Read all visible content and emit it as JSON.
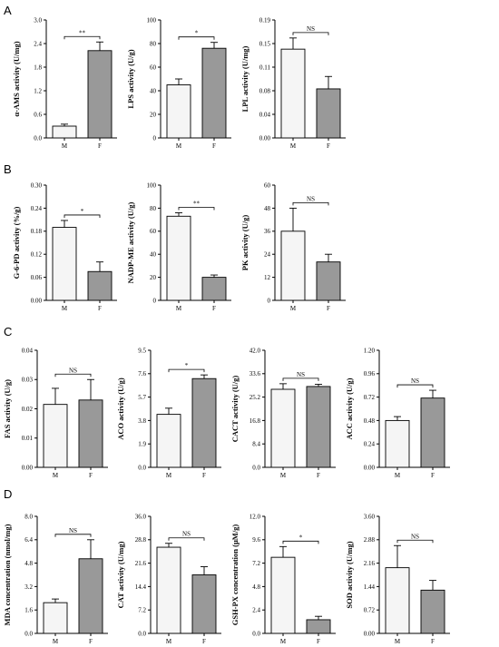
{
  "panel_letters": [
    "A",
    "B",
    "C",
    "D"
  ],
  "colors": {
    "M_bar": "#f5f5f5",
    "F_bar": "#999999",
    "axis": "#000000"
  },
  "chart_data": [
    {
      "type": "bar",
      "panel": "A",
      "ylabel": "α-AMS activity (U/mg)",
      "yticks": [
        "0.0",
        "0.6",
        "1.2",
        "1.8",
        "2.4",
        "3.0"
      ],
      "ylim": [
        0,
        3.0
      ],
      "categories": [
        "M",
        "F"
      ],
      "values": [
        0.3,
        2.22
      ],
      "errors": [
        0.05,
        0.22
      ],
      "significance": "**"
    },
    {
      "type": "bar",
      "panel": "A",
      "ylabel": "LPS activity (U/g)",
      "yticks": [
        "0",
        "20",
        "40",
        "60",
        "80",
        "100"
      ],
      "ylim": [
        0,
        100
      ],
      "categories": [
        "M",
        "F"
      ],
      "values": [
        45,
        76
      ],
      "errors": [
        5,
        5
      ],
      "significance": "*"
    },
    {
      "type": "bar",
      "panel": "A",
      "ylabel": "LPL activity (U/mg)",
      "yticks": [
        "0.00",
        "0.04",
        "0.08",
        "0.11",
        "0.15",
        "0.19"
      ],
      "ylim": [
        0,
        0.19
      ],
      "categories": [
        "M",
        "F"
      ],
      "values": [
        0.143,
        0.079
      ],
      "errors": [
        0.018,
        0.02
      ],
      "significance": "NS"
    },
    {
      "type": "bar",
      "panel": "B",
      "ylabel": "G-6-PD activity (%/g)",
      "yticks": [
        "0.00",
        "0.06",
        "0.12",
        "0.18",
        "0.24",
        "0.30"
      ],
      "ylim": [
        0,
        0.3
      ],
      "categories": [
        "M",
        "F"
      ],
      "values": [
        0.19,
        0.075
      ],
      "errors": [
        0.018,
        0.025
      ],
      "significance": "*"
    },
    {
      "type": "bar",
      "panel": "B",
      "ylabel": "NADP-ME activity (U/g)",
      "yticks": [
        "0",
        "20",
        "40",
        "60",
        "80",
        "100"
      ],
      "ylim": [
        0,
        100
      ],
      "categories": [
        "M",
        "F"
      ],
      "values": [
        73,
        20
      ],
      "errors": [
        3,
        2
      ],
      "significance": "**"
    },
    {
      "type": "bar",
      "panel": "B",
      "ylabel": "PK activity (U/g)",
      "yticks": [
        "0",
        "12",
        "24",
        "36",
        "48",
        "60"
      ],
      "ylim": [
        0,
        60
      ],
      "categories": [
        "M",
        "F"
      ],
      "values": [
        36,
        20
      ],
      "errors": [
        12,
        4
      ],
      "significance": "NS"
    },
    {
      "type": "bar",
      "panel": "C",
      "ylabel": "FAS activity (U/g)",
      "yticks": [
        "0.00",
        "0.01",
        "0.02",
        "0.03",
        "0.04"
      ],
      "ylim": [
        0,
        0.04
      ],
      "categories": [
        "M",
        "F"
      ],
      "values": [
        0.0215,
        0.023
      ],
      "errors": [
        0.0055,
        0.007
      ],
      "significance": "NS"
    },
    {
      "type": "bar",
      "panel": "C",
      "ylabel": "ACO activity (U/g)",
      "yticks": [
        "0.0",
        "1.9",
        "3.8",
        "5.7",
        "7.6",
        "9.5"
      ],
      "ylim": [
        0,
        9.5
      ],
      "categories": [
        "M",
        "F"
      ],
      "values": [
        4.3,
        7.2
      ],
      "errors": [
        0.5,
        0.3
      ],
      "significance": "*"
    },
    {
      "type": "bar",
      "panel": "C",
      "ylabel": "CACT activity (U/g)",
      "yticks": [
        "0.0",
        "8.4",
        "16.8",
        "25.2",
        "33.6",
        "42.0"
      ],
      "ylim": [
        0,
        42.0
      ],
      "categories": [
        "M",
        "F"
      ],
      "values": [
        28,
        29
      ],
      "errors": [
        2,
        0.8
      ],
      "significance": "NS"
    },
    {
      "type": "bar",
      "panel": "C",
      "ylabel": "ACC activity (U/g)",
      "yticks": [
        "0.00",
        "0.24",
        "0.48",
        "0.72",
        "0.96",
        "1.20"
      ],
      "ylim": [
        0,
        1.2
      ],
      "categories": [
        "M",
        "F"
      ],
      "values": [
        0.48,
        0.71
      ],
      "errors": [
        0.04,
        0.08
      ],
      "significance": "NS"
    },
    {
      "type": "bar",
      "panel": "D",
      "ylabel": "MDA concentration (nmol/mg)",
      "yticks": [
        "0.0",
        "1.6",
        "3.2",
        "4.8",
        "6.4",
        "8.0"
      ],
      "ylim": [
        0,
        8.0
      ],
      "categories": [
        "M",
        "F"
      ],
      "values": [
        2.1,
        5.1
      ],
      "errors": [
        0.25,
        1.3
      ],
      "significance": "NS"
    },
    {
      "type": "bar",
      "panel": "D",
      "ylabel": "CAT activity (U/mg)",
      "yticks": [
        "0.0",
        "7.2",
        "14.4",
        "21.6",
        "28.8",
        "36.0"
      ],
      "ylim": [
        0,
        36.0
      ],
      "categories": [
        "M",
        "F"
      ],
      "values": [
        26.5,
        18
      ],
      "errors": [
        1.2,
        2.5
      ],
      "significance": "NS"
    },
    {
      "type": "bar",
      "panel": "D",
      "ylabel": "GSH-PX concentration (μM/g)",
      "yticks": [
        "0.0",
        "2.4",
        "4.8",
        "7.2",
        "9.6",
        "12.0"
      ],
      "ylim": [
        0,
        12.0
      ],
      "categories": [
        "M",
        "F"
      ],
      "values": [
        7.8,
        1.4
      ],
      "errors": [
        1.1,
        0.35
      ],
      "significance": "*"
    },
    {
      "type": "bar",
      "panel": "D",
      "ylabel": "SOD activity (U/mg)",
      "yticks": [
        "0.00",
        "0.72",
        "1.44",
        "2.16",
        "2.88",
        "3.60"
      ],
      "ylim": [
        0,
        3.6
      ],
      "categories": [
        "M",
        "F"
      ],
      "values": [
        2.02,
        1.33
      ],
      "errors": [
        0.68,
        0.3
      ],
      "significance": "NS"
    }
  ]
}
